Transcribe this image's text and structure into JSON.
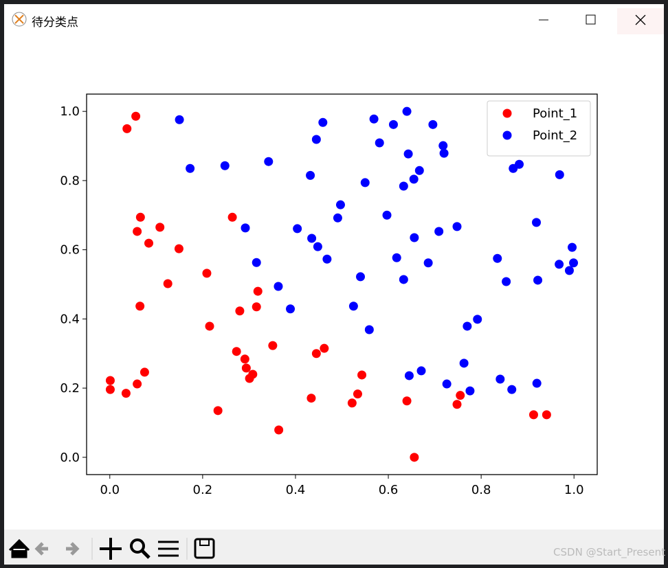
{
  "window": {
    "title": "待分类点"
  },
  "watermark": "CSDN @Start_Present",
  "chart_data": {
    "type": "scatter",
    "xlim": [
      -0.05,
      1.05
    ],
    "ylim": [
      -0.05,
      1.05
    ],
    "xticks": [
      {
        "value": 0,
        "label": "0.0"
      },
      0.2,
      0.4,
      0.6,
      0.8,
      {
        "value": 1,
        "label": "1.0"
      }
    ],
    "yticks": [
      {
        "value": 0,
        "label": "0.0"
      },
      0.2,
      0.4,
      0.6,
      0.8,
      {
        "value": 1,
        "label": "1.0"
      }
    ],
    "legend": "upper right",
    "series": [
      {
        "name": "Point_1",
        "color": "#ff0000",
        "x": [
          0.056,
          0.037,
          0.066,
          0.108,
          0.059,
          0.084,
          0.149,
          0.264,
          0.209,
          0.125,
          0.319,
          0.065,
          0.316,
          0.28,
          0.215,
          0.351,
          0.273,
          0.462,
          0.445,
          0.291,
          0.294,
          0.308,
          0.301,
          0.075,
          0.001,
          0.059,
          0.001,
          0.035,
          0.543,
          0.434,
          0.534,
          0.522,
          0.64,
          0.755,
          0.748,
          0.233,
          0.913,
          0.941,
          0.364,
          0.656
        ],
        "values": [
          0.986,
          0.95,
          0.694,
          0.665,
          0.653,
          0.619,
          0.603,
          0.694,
          0.532,
          0.502,
          0.48,
          0.437,
          0.435,
          0.423,
          0.379,
          0.323,
          0.306,
          0.315,
          0.3,
          0.284,
          0.258,
          0.24,
          0.228,
          0.246,
          0.222,
          0.212,
          0.196,
          0.185,
          0.238,
          0.171,
          0.183,
          0.157,
          0.163,
          0.179,
          0.153,
          0.135,
          0.123,
          0.123,
          0.079,
          0.0
        ]
      },
      {
        "name": "Point_2",
        "color": "#0000ff",
        "x": [
          0.15,
          0.173,
          0.248,
          0.342,
          0.459,
          0.445,
          0.432,
          0.569,
          0.611,
          0.64,
          0.581,
          0.643,
          0.696,
          0.718,
          0.72,
          0.667,
          0.655,
          0.633,
          0.55,
          0.497,
          0.491,
          0.597,
          0.709,
          0.748,
          0.656,
          0.618,
          0.686,
          0.633,
          0.404,
          0.292,
          0.435,
          0.448,
          0.468,
          0.316,
          0.363,
          0.54,
          0.389,
          0.525,
          0.559,
          0.869,
          0.882,
          0.969,
          0.919,
          0.996,
          0.968,
          0.999,
          0.99,
          0.835,
          0.854,
          0.922,
          0.792,
          0.77,
          0.763,
          0.645,
          0.671,
          0.726,
          0.776,
          0.841,
          0.866,
          0.92
        ],
        "values": [
          0.976,
          0.835,
          0.843,
          0.855,
          0.968,
          0.919,
          0.815,
          0.978,
          0.962,
          1.0,
          0.909,
          0.877,
          0.962,
          0.901,
          0.879,
          0.829,
          0.804,
          0.784,
          0.794,
          0.73,
          0.692,
          0.7,
          0.653,
          0.667,
          0.635,
          0.577,
          0.562,
          0.514,
          0.661,
          0.663,
          0.633,
          0.609,
          0.573,
          0.563,
          0.494,
          0.522,
          0.429,
          0.437,
          0.369,
          0.835,
          0.847,
          0.817,
          0.679,
          0.607,
          0.558,
          0.562,
          0.54,
          0.575,
          0.508,
          0.512,
          0.399,
          0.379,
          0.272,
          0.236,
          0.25,
          0.212,
          0.192,
          0.226,
          0.196,
          0.214
        ]
      }
    ]
  }
}
